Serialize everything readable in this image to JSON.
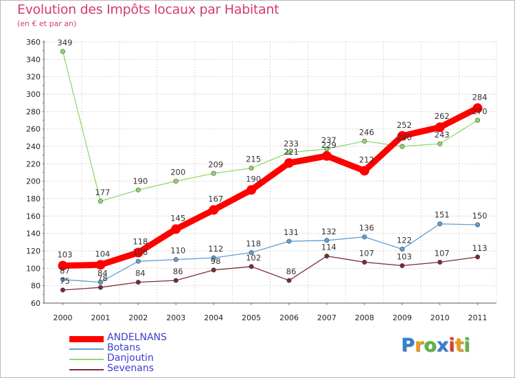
{
  "title": "Evolution des Impôts locaux par Habitant",
  "subtitle": "(en € et par an)",
  "logo": {
    "letters": [
      "P",
      "r",
      "o",
      "x",
      "i",
      "t",
      "i"
    ],
    "colors": [
      "#2f7fd6",
      "#f29a1a",
      "#59b83a",
      "#2f7fd6",
      "#e63b2e",
      "#f29a1a",
      "#59b83a"
    ]
  },
  "chart_data": {
    "type": "line",
    "title": "Evolution des Impôts locaux par Habitant",
    "subtitle": "(en € et par an)",
    "xlabel": "",
    "ylabel": "",
    "x": [
      "2000",
      "2001",
      "2002",
      "2003",
      "2004",
      "2005",
      "2006",
      "2007",
      "2008",
      "2009",
      "2010",
      "2011"
    ],
    "ylim": [
      60,
      360
    ],
    "yticks": [
      60,
      80,
      100,
      120,
      140,
      160,
      180,
      200,
      220,
      240,
      260,
      280,
      300,
      320,
      340,
      360
    ],
    "grid": true,
    "legend": "bottom-left",
    "series": [
      {
        "name": "ANDELNANS",
        "color": "#ff0000",
        "values": [
          103,
          104,
          118,
          145,
          167,
          190,
          221,
          229,
          212,
          252,
          262,
          284
        ],
        "labels": [
          "103",
          "104",
          "118",
          "145",
          "167",
          "190",
          "221",
          "229",
          "212",
          "252",
          "262",
          "284"
        ]
      },
      {
        "name": "Botans",
        "color": "#5e9fd6",
        "values": [
          87,
          84,
          108,
          110,
          112,
          118,
          131,
          132,
          136,
          122,
          151,
          150
        ],
        "labels": [
          "87",
          "84",
          "108",
          "110",
          "112",
          "118",
          "131",
          "132",
          "136",
          "122",
          "151",
          "150"
        ]
      },
      {
        "name": "Danjoutin",
        "color": "#8fd86b",
        "values": [
          349,
          177,
          190,
          200,
          209,
          215,
          233,
          237,
          246,
          240,
          243,
          270
        ],
        "labels": [
          "349",
          "177",
          "190",
          "200",
          "209",
          "215",
          "233",
          "237",
          "246",
          "240",
          "243",
          "270"
        ]
      },
      {
        "name": "Sevenans",
        "color": "#7a2b33",
        "values": [
          75,
          78,
          84,
          86,
          98,
          102,
          86,
          114,
          107,
          103,
          107,
          113
        ],
        "labels": [
          "75",
          "78",
          "84",
          "86",
          "98",
          "102",
          "86",
          "114",
          "107",
          "103",
          "107",
          "113"
        ]
      }
    ]
  }
}
